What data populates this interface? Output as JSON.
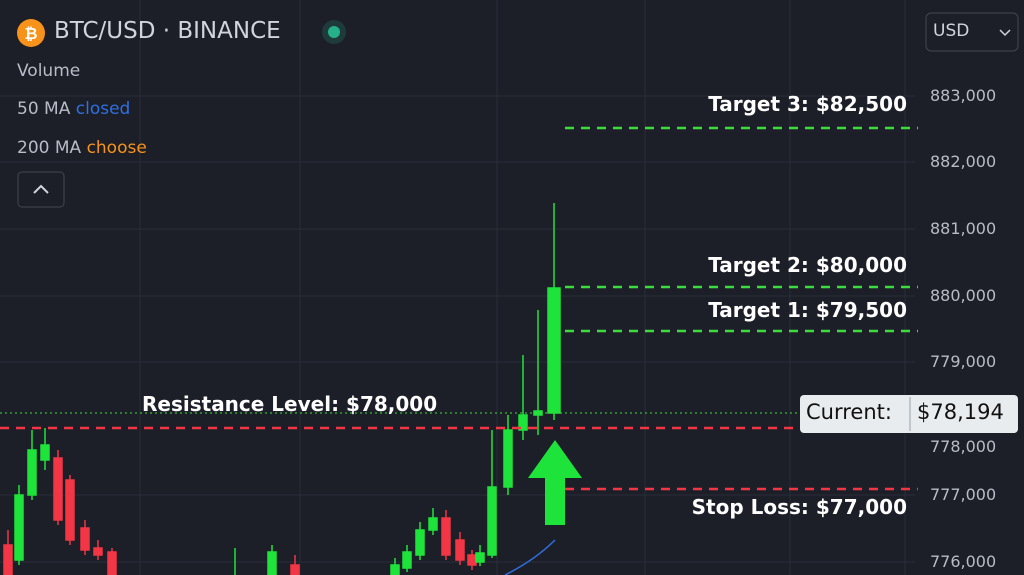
{
  "header": {
    "symbol": "BTC/USD · BINANCE",
    "currency": "USD"
  },
  "indicators": {
    "volume": "Volume",
    "ma50": {
      "label": "50 MA",
      "state": "closed"
    },
    "ma200": {
      "label": "200 MA",
      "state": "choose"
    }
  },
  "price_axis": [
    "883,000",
    "882,000",
    "881,000",
    "880,000",
    "779,000",
    "778,000",
    "777,000",
    "776,000"
  ],
  "annotations": {
    "target3": "Target 3: $82,500",
    "target2": "Target 2: $80,000",
    "target1": "Target 1: $79,500",
    "resistance": "Resistance Level: $78,000",
    "stop_loss": "Stop Loss: $77,000"
  },
  "current": {
    "label": "Current:",
    "price": "$78,194"
  }
}
